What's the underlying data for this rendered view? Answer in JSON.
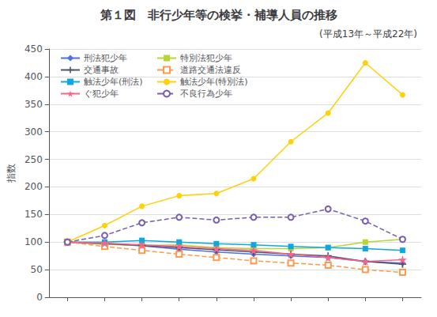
{
  "chart_data": {
    "type": "line",
    "title": "第１図　非行少年等の検挙・補導人員の推移",
    "subtitle": "(平成13年～平成22年)",
    "ylabel": "指数",
    "categories": [
      null,
      null,
      null,
      null,
      null,
      null,
      null,
      null,
      null,
      null
    ],
    "ylim": [
      0,
      450
    ],
    "yticks": [
      0,
      50,
      100,
      150,
      200,
      250,
      300,
      350,
      400,
      450
    ],
    "grid": true,
    "legend": "upper left",
    "series": [
      {
        "name": "刑法犯少年",
        "marker": "diamond",
        "line_style": "solid",
        "values": [
          100,
          97,
          93,
          87,
          82,
          78,
          75,
          72,
          65,
          62
        ]
      },
      {
        "name": "特別法犯少年",
        "marker": "square",
        "line_style": "solid",
        "values": [
          100,
          96,
          94,
          95,
          90,
          88,
          88,
          90,
          100,
          105
        ]
      },
      {
        "name": "交通事故",
        "marker": "plus",
        "line_style": "solid",
        "values": [
          100,
          97,
          94,
          90,
          86,
          82,
          78,
          75,
          65,
          60
        ]
      },
      {
        "name": "道路交通法違反",
        "marker": "open_square",
        "line_style": "dashed",
        "values": [
          100,
          92,
          85,
          78,
          72,
          66,
          62,
          58,
          50,
          45
        ]
      },
      {
        "name": "触法少年(刑法)",
        "marker": "square",
        "line_style": "solid",
        "values": [
          100,
          100,
          103,
          100,
          97,
          95,
          92,
          90,
          88,
          85
        ]
      },
      {
        "name": "触法少年(特別法)",
        "marker": "circle",
        "line_style": "solid",
        "values": [
          100,
          130,
          165,
          184,
          188,
          215,
          282,
          334,
          425,
          367
        ]
      },
      {
        "name": "ぐ犯少年",
        "marker": "star",
        "line_style": "solid",
        "values": [
          100,
          98,
          95,
          92,
          88,
          85,
          78,
          72,
          65,
          68
        ]
      },
      {
        "name": "不良行為少年",
        "marker": "open_circle",
        "line_style": "dashed",
        "values": [
          100,
          112,
          135,
          145,
          140,
          145,
          145,
          160,
          138,
          105
        ]
      }
    ]
  }
}
